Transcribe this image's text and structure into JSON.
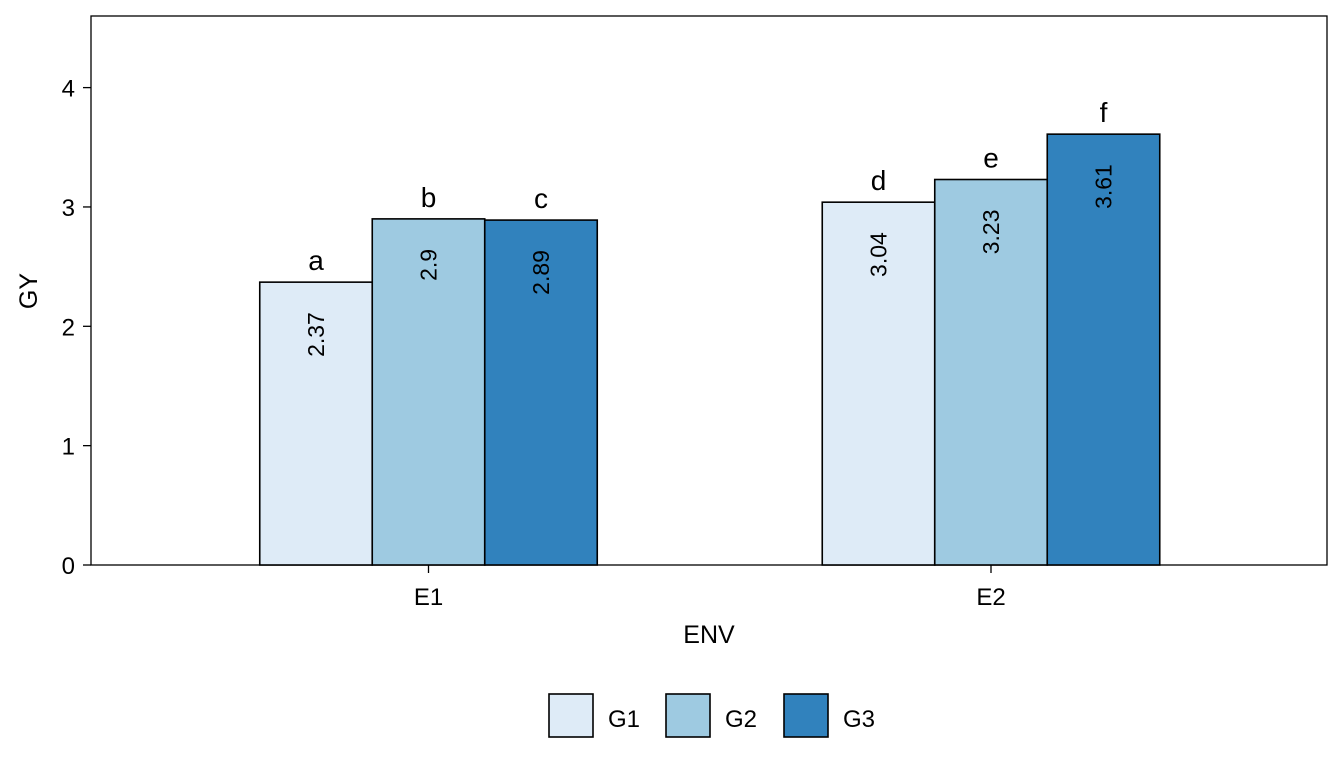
{
  "chart_data": {
    "type": "bar",
    "xlabel": "ENV",
    "ylabel": "GY",
    "categories": [
      "E1",
      "E2"
    ],
    "ylim": [
      0,
      4.6
    ],
    "yticks": [
      0,
      1,
      2,
      3,
      4
    ],
    "grid": false,
    "legend_position": "bottom",
    "series": [
      {
        "name": "G1",
        "color": "#deebf7",
        "values": [
          2.37,
          3.04
        ],
        "value_labels": [
          "2.37",
          "3.04"
        ],
        "letters": [
          "a",
          "d"
        ]
      },
      {
        "name": "G2",
        "color": "#9ecae1",
        "values": [
          2.9,
          3.23
        ],
        "value_labels": [
          "2.9",
          "3.23"
        ],
        "letters": [
          "b",
          "e"
        ]
      },
      {
        "name": "G3",
        "color": "#3182bd",
        "values": [
          2.89,
          3.61
        ],
        "value_labels": [
          "2.89",
          "3.61"
        ],
        "letters": [
          "c",
          "f"
        ]
      }
    ]
  }
}
